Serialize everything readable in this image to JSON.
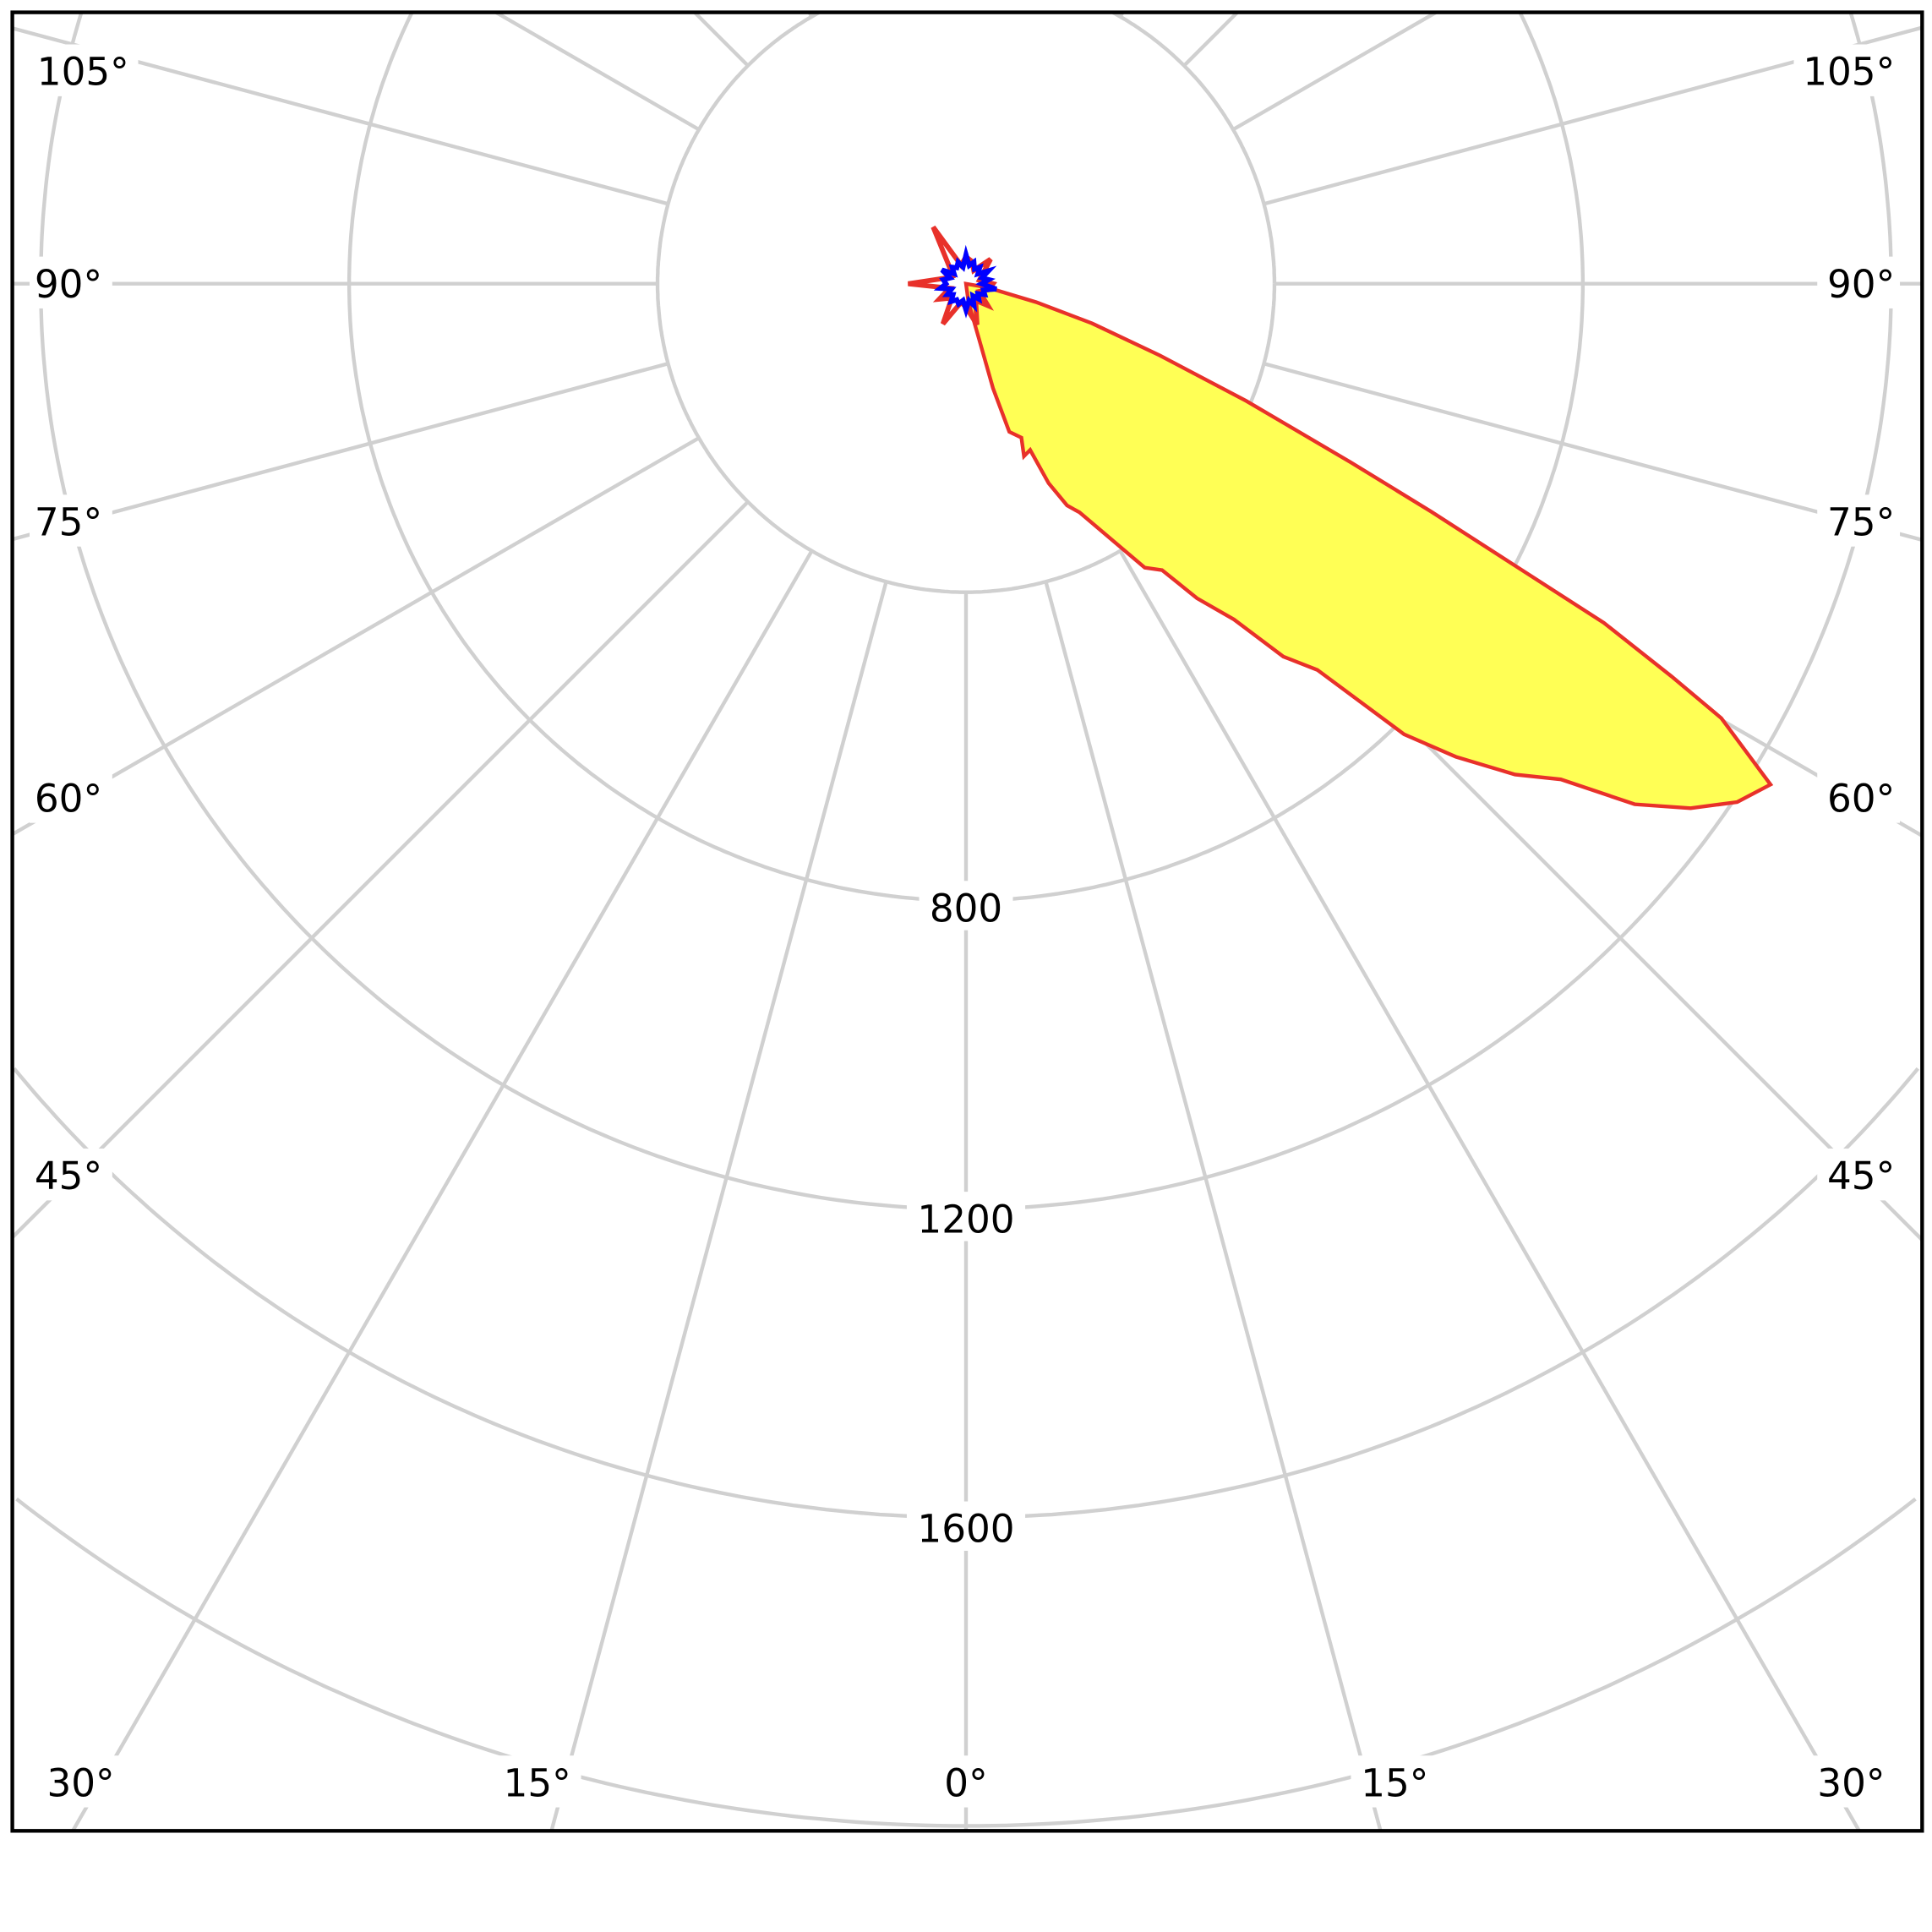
{
  "chart_data": {
    "type": "polar",
    "title": "",
    "angle_unit": "degrees",
    "angle_zero": "down",
    "angle_labels": [
      "105°",
      "90°",
      "75°",
      "60°",
      "45°",
      "30°",
      "15°",
      "0°",
      "15°",
      "30°",
      "45°",
      "60°",
      "75°",
      "90°",
      "105°"
    ],
    "radial_ticks": [
      400,
      800,
      1200,
      1600,
      2000,
      2400
    ],
    "radial_tick_labels": [
      "800",
      "1200",
      "1600"
    ],
    "grid": true,
    "angular_grid_step": 15,
    "series": [
      {
        "color": "#e8312a",
        "fill": "#ffff55",
        "points": [
          [
            0,
            0
          ],
          [
            80,
            28
          ],
          [
            75.3,
            94
          ],
          [
            72.6,
            171
          ],
          [
            69.7,
            268
          ],
          [
            67.3,
            394
          ],
          [
            65.1,
            550
          ],
          [
            63.9,
            672
          ],
          [
            62.8,
            804
          ],
          [
            62.0,
            937
          ],
          [
            60.9,
            1047
          ],
          [
            60.1,
            1130
          ],
          [
            58.1,
            1229
          ],
          [
            56.1,
            1205
          ],
          [
            54.1,
            1160
          ],
          [
            52.1,
            1099
          ],
          [
            50.2,
            1004
          ],
          [
            48.2,
            955
          ],
          [
            46.0,
            883
          ],
          [
            44.2,
            815
          ],
          [
            42.3,
            677
          ],
          [
            40.4,
            635
          ],
          [
            38.6,
            557
          ],
          [
            36.3,
            506
          ],
          [
            34.4,
            450
          ],
          [
            32.2,
            435
          ],
          [
            26.4,
            331
          ],
          [
            24.5,
            316
          ],
          [
            22.5,
            280
          ],
          [
            21.1,
            231
          ],
          [
            18.6,
            236
          ],
          [
            19.8,
            212
          ],
          [
            16.3,
            200
          ],
          [
            14.5,
            140
          ],
          [
            13.5,
            82
          ],
          [
            7.6,
            24
          ],
          [
            0,
            0
          ]
        ]
      },
      {
        "color": "#e8312a",
        "points": [
          [
            0,
            30
          ],
          [
            15,
            55
          ],
          [
            30,
            25
          ],
          [
            45,
            40
          ],
          [
            60,
            20
          ],
          [
            75,
            30
          ],
          [
            90,
            35
          ],
          [
            105,
            18
          ],
          [
            120,
            25
          ],
          [
            135,
            45
          ],
          [
            150,
            20
          ],
          [
            165,
            30
          ],
          [
            180,
            35
          ],
          [
            195,
            25
          ],
          [
            210,
            85
          ],
          [
            225,
            30
          ],
          [
            240,
            20
          ],
          [
            255,
            28
          ],
          [
            270,
            75
          ],
          [
            285,
            22
          ],
          [
            300,
            40
          ],
          [
            315,
            26
          ],
          [
            330,
            60
          ],
          [
            345,
            25
          ]
        ]
      },
      {
        "color": "#0000ff",
        "points": [
          [
            0,
            34
          ],
          [
            10,
            22
          ],
          [
            20,
            30
          ],
          [
            30,
            18
          ],
          [
            40,
            26
          ],
          [
            50,
            20
          ],
          [
            60,
            28
          ],
          [
            70,
            24
          ],
          [
            80,
            40
          ],
          [
            90,
            20
          ],
          [
            100,
            30
          ],
          [
            110,
            22
          ],
          [
            120,
            34
          ],
          [
            130,
            20
          ],
          [
            140,
            28
          ],
          [
            150,
            22
          ],
          [
            160,
            30
          ],
          [
            170,
            24
          ],
          [
            180,
            38
          ],
          [
            190,
            22
          ],
          [
            200,
            30
          ],
          [
            210,
            24
          ],
          [
            220,
            28
          ],
          [
            230,
            20
          ],
          [
            240,
            36
          ],
          [
            250,
            22
          ],
          [
            260,
            30
          ],
          [
            270,
            26
          ],
          [
            280,
            34
          ],
          [
            290,
            20
          ],
          [
            300,
            28
          ],
          [
            310,
            22
          ],
          [
            320,
            30
          ],
          [
            330,
            24
          ],
          [
            340,
            28
          ],
          [
            350,
            22
          ]
        ]
      }
    ]
  }
}
